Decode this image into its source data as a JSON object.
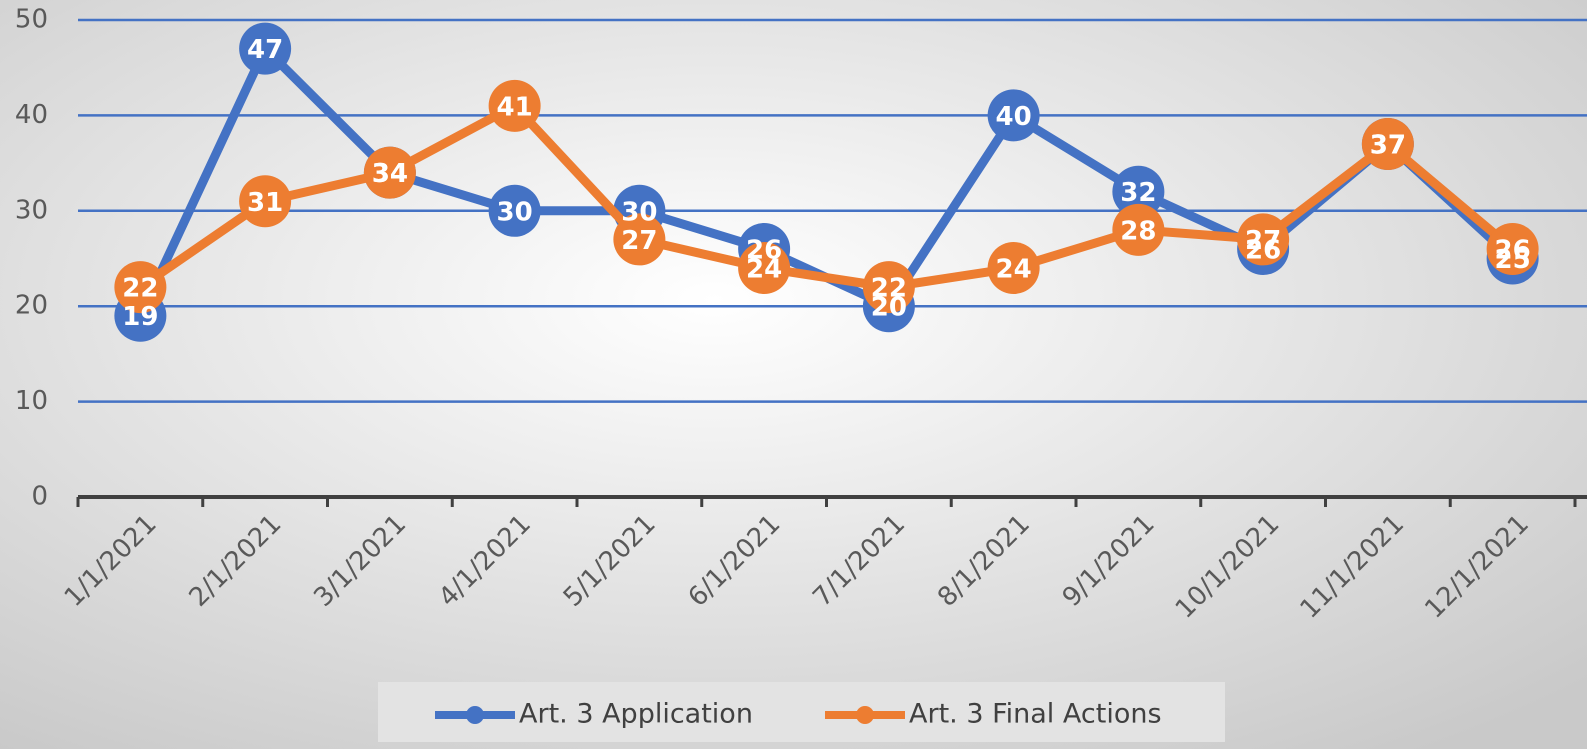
{
  "chart_data": {
    "type": "line",
    "categories": [
      "1/1/2021",
      "2/1/2021",
      "3/1/2021",
      "4/1/2021",
      "5/1/2021",
      "6/1/2021",
      "7/1/2021",
      "8/1/2021",
      "9/1/2021",
      "10/1/2021",
      "11/1/2021",
      "12/1/2021"
    ],
    "series": [
      {
        "name": "Art. 3 Application",
        "color": "#4472c4",
        "values": [
          19,
          47,
          34,
          30,
          30,
          26,
          20,
          40,
          32,
          26,
          37,
          25
        ]
      },
      {
        "name": "Art. 3 Final Actions",
        "color": "#ed7d31",
        "values": [
          22,
          31,
          34,
          41,
          27,
          24,
          22,
          24,
          28,
          27,
          37,
          26
        ]
      }
    ],
    "ylim": [
      0,
      50
    ],
    "yticks": [
      0,
      10,
      20,
      30,
      40,
      50
    ],
    "grid": true,
    "legend": "bottom"
  }
}
